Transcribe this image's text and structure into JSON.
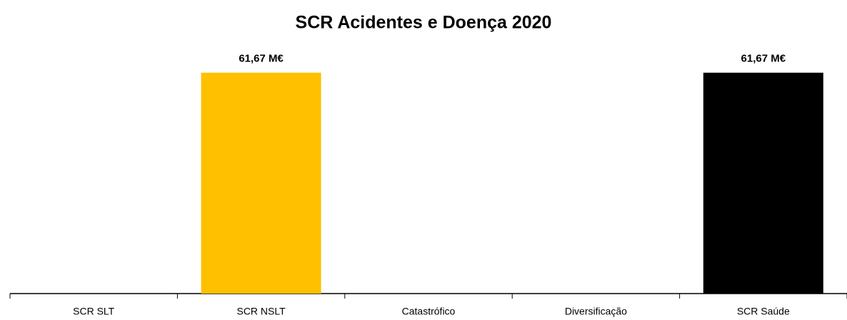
{
  "chart_data": {
    "type": "bar",
    "title": "SCR Acidentes e Doença 2020",
    "categories": [
      "SCR SLT",
      "SCR NSLT",
      "Catastrófico",
      "Diversificação",
      "SCR Saúde"
    ],
    "values": [
      0,
      61.67,
      0,
      0,
      61.67
    ],
    "value_labels": [
      null,
      "61,67 M€",
      null,
      null,
      "61,67 M€"
    ],
    "colors": [
      "#ffc000",
      "#ffc000",
      "#ffc000",
      "#ffc000",
      "#000000"
    ],
    "ylim": [
      0,
      70
    ]
  }
}
